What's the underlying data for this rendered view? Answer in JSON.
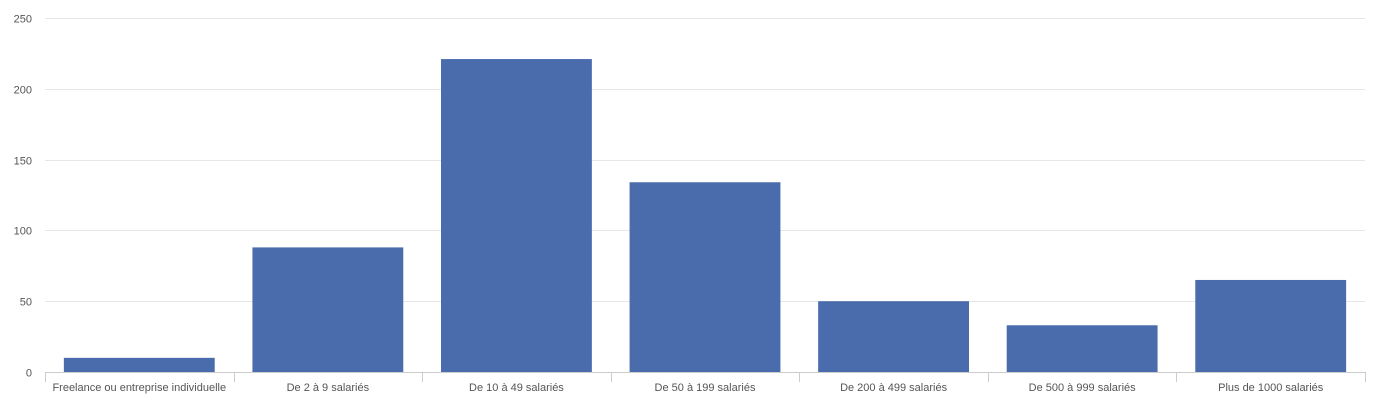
{
  "chart_data": {
    "type": "bar",
    "categories": [
      "Freelance ou entreprise individuelle",
      "De 2 à 9 salariés",
      "De 10 à 49 salariés",
      "De 50 à 199 salariés",
      "De 200 à 499 salariés",
      "De 500 à 999 salariés",
      "Plus de 1000 salariés"
    ],
    "values": [
      10,
      88,
      221,
      134,
      50,
      33,
      65
    ],
    "ylim": [
      0,
      250
    ],
    "yticks": [
      "0",
      "50",
      "100",
      "150",
      "200",
      "250"
    ],
    "title": "",
    "xlabel": "",
    "ylabel": "",
    "grid": true,
    "legend": "none",
    "colors": {
      "bar": "#4a6cad",
      "grid": "#e6e6e6",
      "axis": "#cccccc",
      "text": "#555555"
    }
  }
}
